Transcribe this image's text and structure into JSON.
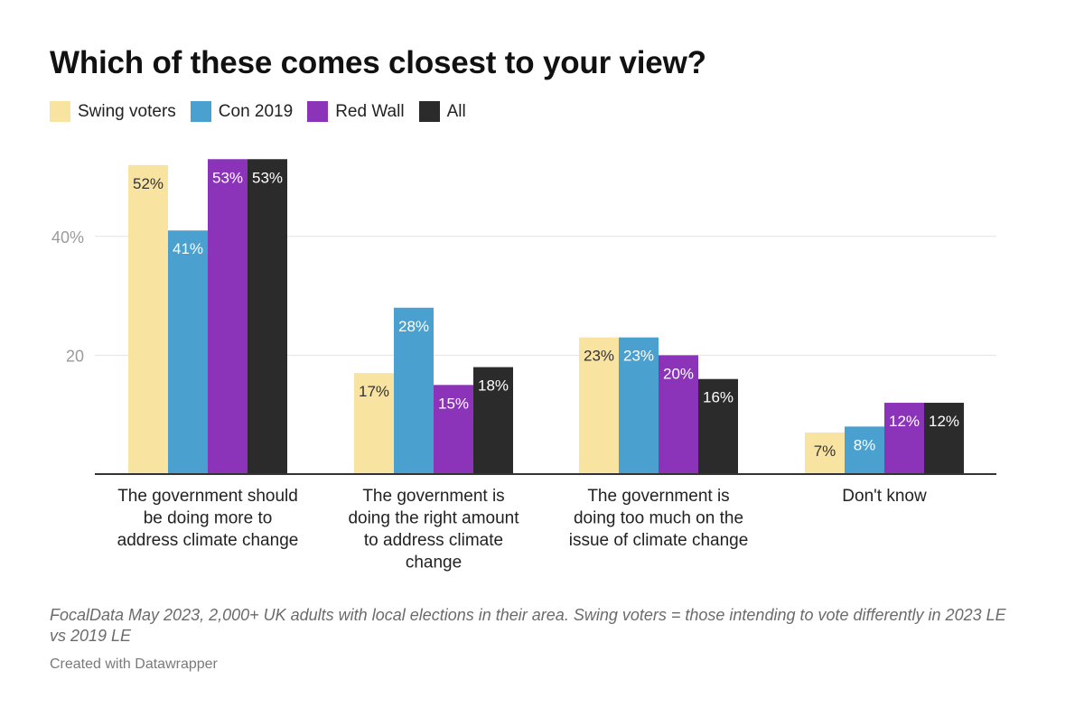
{
  "title": "Which of these comes closest to your view?",
  "legend": [
    {
      "label": "Swing voters",
      "color": "#f9e3a1"
    },
    {
      "label": "Con 2019",
      "color": "#4aa0cf"
    },
    {
      "label": "Red Wall",
      "color": "#8b34b9"
    },
    {
      "label": "All",
      "color": "#2b2b2b"
    }
  ],
  "chart_data": {
    "type": "bar",
    "title": "Which of these comes closest to your view?",
    "xlabel": "",
    "ylabel": "",
    "ylim": [
      0,
      53
    ],
    "grid": true,
    "legend_position": "top-left",
    "y_ticks": [
      {
        "value": 20,
        "label": "20"
      },
      {
        "value": 40,
        "label": "40%"
      }
    ],
    "categories": [
      "The government should be doing more to address climate change",
      "The government is doing the right amount to address climate change",
      "The government is doing too much on the issue of climate change",
      "Don't know"
    ],
    "category_lines": [
      [
        "The government should",
        "be doing more to",
        "address climate change"
      ],
      [
        "The government is",
        "doing the right amount",
        "to address climate",
        "change"
      ],
      [
        "The government is",
        "doing too much on the",
        "issue of climate change"
      ],
      [
        "Don't know"
      ]
    ],
    "series": [
      {
        "name": "Swing voters",
        "values": [
          52,
          17,
          23,
          7
        ],
        "labels": [
          "52%",
          "17%",
          "23%",
          "7%"
        ]
      },
      {
        "name": "Con 2019",
        "values": [
          41,
          28,
          23,
          8
        ],
        "labels": [
          "41%",
          "28%",
          "23%",
          "8%"
        ]
      },
      {
        "name": "Red Wall",
        "values": [
          53,
          15,
          20,
          12
        ],
        "labels": [
          "53%",
          "15%",
          "20%",
          "12%"
        ]
      },
      {
        "name": "All",
        "values": [
          53,
          18,
          16,
          12
        ],
        "labels": [
          "53%",
          "18%",
          "16%",
          "12%"
        ]
      }
    ],
    "label_colors": [
      "#333333",
      "#ffffff",
      "#ffffff",
      "#ffffff"
    ]
  },
  "footnote": "FocalData May 2023, 2,000+ UK adults with local elections in their area. Swing voters = those intending to vote differently in 2023 LE vs 2019 LE",
  "credit": "Created with Datawrapper"
}
